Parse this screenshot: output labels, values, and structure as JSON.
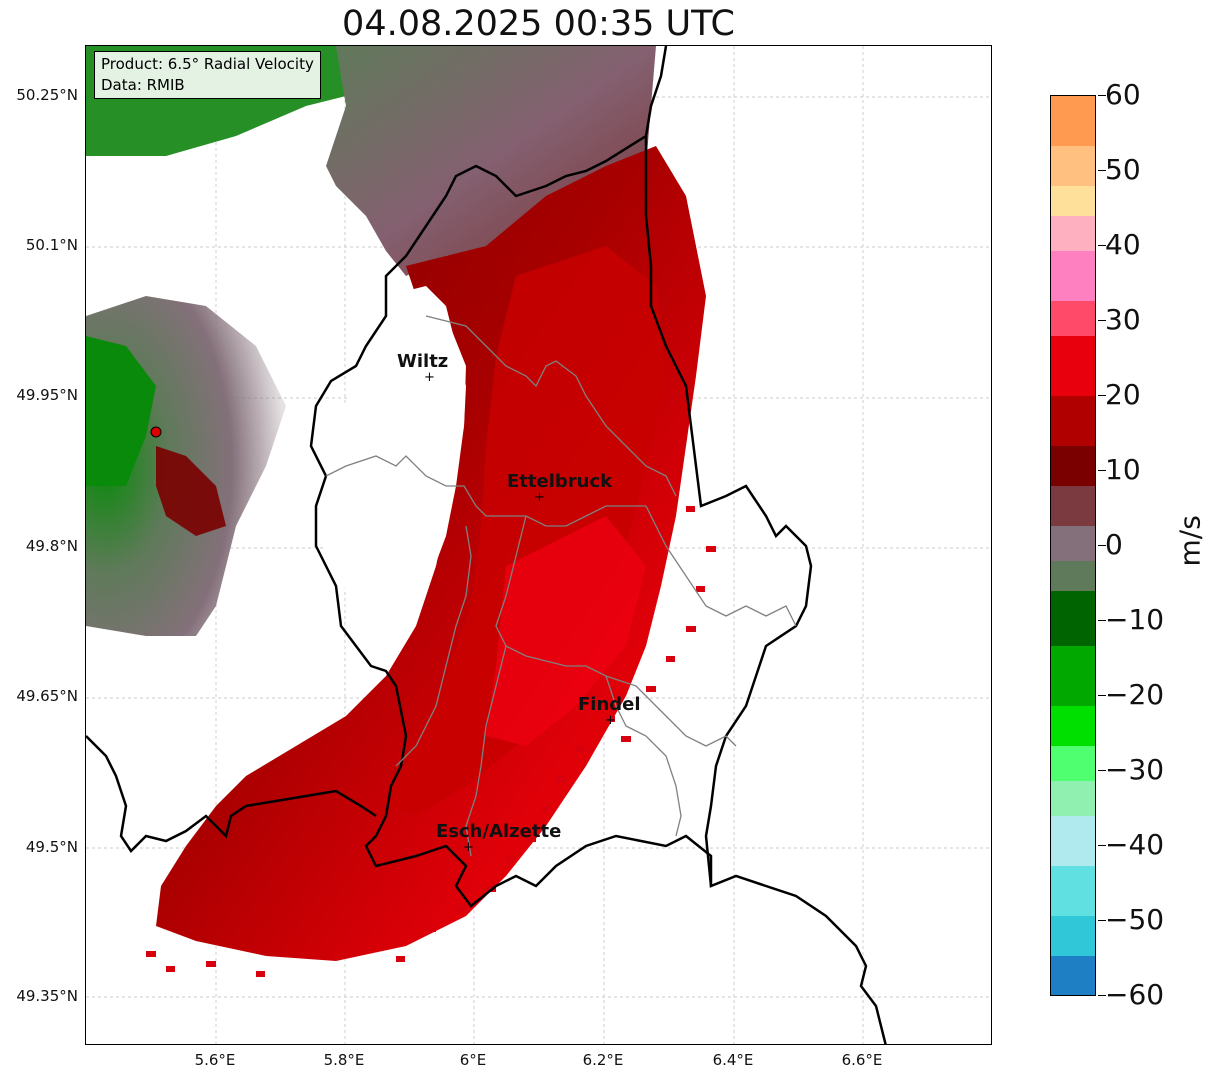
{
  "title": "04.08.2025 00:35 UTC",
  "info_box": {
    "product": "Product: 6.5° Radial Velocity",
    "data": "Data: RMIB"
  },
  "axes": {
    "y_ticks": [
      "50.25°N",
      "50.1°N",
      "49.95°N",
      "49.8°N",
      "49.65°N",
      "49.5°N",
      "49.35°N"
    ],
    "x_ticks": [
      "5.6°E",
      "5.8°E",
      "6°E",
      "6.2°E",
      "6.4°E",
      "6.6°E"
    ],
    "grid": true
  },
  "cities": [
    {
      "name": "Wiltz"
    },
    {
      "name": "Ettelbruck"
    },
    {
      "name": "Findel"
    },
    {
      "name": "Esch/Alzette"
    }
  ],
  "colorbar": {
    "unit": "m/s",
    "ticks": [
      "60",
      "50",
      "40",
      "30",
      "20",
      "10",
      "0",
      "−10",
      "−20",
      "−30",
      "−40",
      "−50",
      "−60"
    ],
    "range": [
      -60,
      60
    ],
    "colors": {
      "positive_high": "#ff9a50",
      "positive_mid": "#ff4a6a",
      "positive_strong": "#e8000c",
      "positive_low": "#7a0000",
      "near_zero_pos": "#84707a",
      "near_zero_neg": "#5f7a5a",
      "negative_low": "#006400",
      "negative_mid": "#00e000",
      "negative_light": "#aee8ea",
      "negative_high": "#1f7fc4"
    }
  },
  "map": {
    "border_color": "#000000",
    "region_border_color": "#808080",
    "radar_site_color": "#dd0000"
  }
}
